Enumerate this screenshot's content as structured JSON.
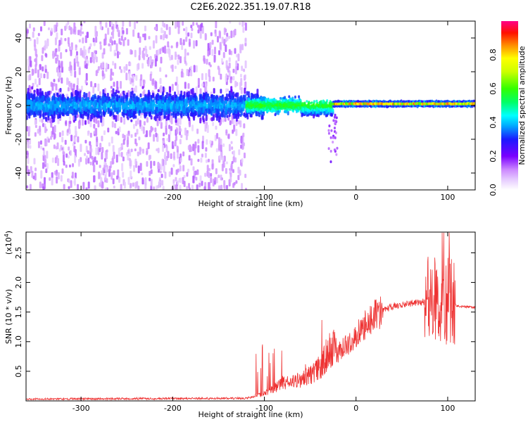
{
  "title": "C2E6.2022.351.19.07.R18",
  "chart_data": [
    {
      "type": "heatmap",
      "xlabel": "Height of straight line (km)",
      "ylabel": "Frequency (Hz)",
      "xlim": [
        -360,
        130
      ],
      "ylim": [
        -50,
        50
      ],
      "x_ticks": [
        -300,
        -200,
        -100,
        0,
        100
      ],
      "y_ticks": [
        -40,
        -20,
        0,
        20,
        40
      ],
      "x_tick_labels": [
        "-300",
        "-200",
        "-100",
        "0",
        "100"
      ],
      "y_tick_labels": [
        "-40",
        "-20",
        "0",
        "20",
        "40"
      ],
      "colorbar": {
        "label": "Normalized spectral amplitude",
        "range": [
          0,
          1
        ],
        "ticks": [
          0.0,
          0.2,
          0.4,
          0.6,
          0.8
        ],
        "tick_labels": [
          "0.0",
          "0.2",
          "0.4",
          "0.6",
          "0.8"
        ]
      },
      "features": [
        {
          "x_range": [
            -360,
            -120
          ],
          "freq_spread": 50,
          "core_amplitude": 0.3,
          "description": "broadband noise"
        },
        {
          "x_range": [
            -120,
            -25
          ],
          "freq_center": 0,
          "freq_halfwidth": 8,
          "core_amplitude": 0.5
        },
        {
          "x_range": [
            -25,
            130
          ],
          "freq_center": 1,
          "freq_halfwidth": 2,
          "core_amplitude": 0.85
        }
      ]
    },
    {
      "type": "line",
      "xlabel": "Height of straight line (km)",
      "ylabel": "SNR (10 * v/v)",
      "y_multiplier": "(x10^4)",
      "xlim": [
        -360,
        130
      ],
      "ylim": [
        0,
        28500
      ],
      "x_ticks": [
        -300,
        -200,
        -100,
        0,
        100
      ],
      "y_ticks": [
        5000,
        10000,
        15000,
        20000,
        25000
      ],
      "x_tick_labels": [
        "-300",
        "-200",
        "-100",
        "0",
        "100"
      ],
      "y_tick_labels": [
        "0.5",
        "1.0",
        "1.5",
        "2.0",
        "2.5"
      ],
      "series": [
        {
          "color": "#ee3333",
          "x": [
            -360,
            -300,
            -200,
            -120,
            -100,
            -80,
            -60,
            -40,
            -30,
            -20,
            -10,
            0,
            20,
            40,
            60,
            80,
            90,
            100,
            105,
            110,
            130
          ],
          "y": [
            300,
            350,
            400,
            450,
            1000,
            2500,
            3000,
            4500,
            7000,
            8000,
            9500,
            11000,
            14500,
            16000,
            16500,
            16800,
            17000,
            17000,
            17000,
            16000,
            15800
          ]
        }
      ]
    }
  ]
}
